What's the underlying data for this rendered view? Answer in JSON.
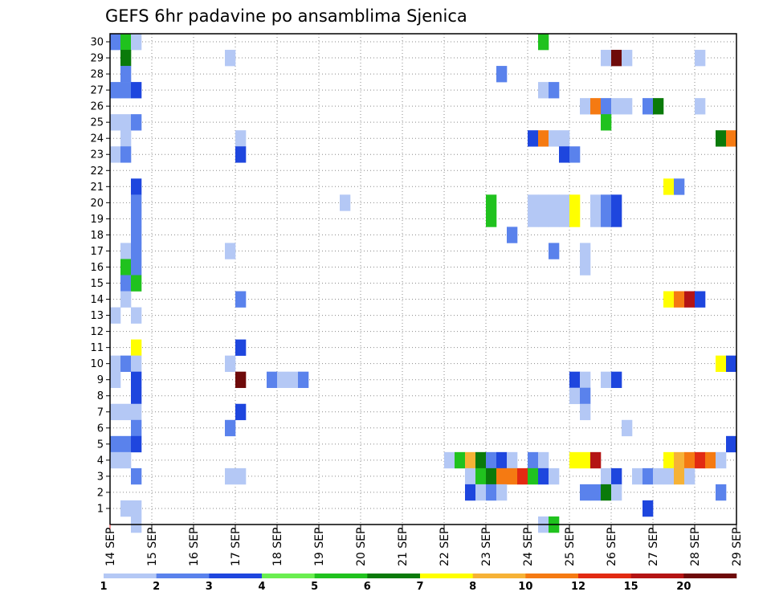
{
  "chart_data": {
    "type": "heatmap",
    "title": "GEFS 6hr padavine po ansamblima Sjenica",
    "xlabel": "",
    "ylabel": "",
    "x_ticks": [
      "14 SEP",
      "15 SEP",
      "16 SEP",
      "17 SEP",
      "18 SEP",
      "19 SEP",
      "20 SEP",
      "21 SEP",
      "22 SEP",
      "23 SEP",
      "24 SEP",
      "25 SEP",
      "26 SEP",
      "27 SEP",
      "28 SEP",
      "29 SEP"
    ],
    "y_ticks": [
      "1",
      "2",
      "3",
      "4",
      "5",
      "6",
      "7",
      "8",
      "9",
      "10",
      "11",
      "12",
      "13",
      "14",
      "15",
      "16",
      "17",
      "18",
      "19",
      "20",
      "21",
      "22",
      "23",
      "24",
      "25",
      "26",
      "27",
      "28",
      "29",
      "30"
    ],
    "xlim": [
      0,
      60
    ],
    "ylim": [
      0,
      30
    ],
    "x_step": "6hr",
    "grid": true,
    "colorbar": {
      "labels": [
        "1",
        "2",
        "3",
        "4",
        "5",
        "6",
        "7",
        "8",
        "10",
        "12",
        "15",
        "20"
      ],
      "colors": [
        "#b4c8f5",
        "#5a82ec",
        "#1e46de",
        "#6aee50",
        "#20c21e",
        "#0a7a0a",
        "#ffff00",
        "#f6b236",
        "#f57a12",
        "#e22a12",
        "#b41414",
        "#6e0a0a"
      ]
    },
    "cells": [
      [
        1,
        30,
        2
      ],
      [
        2,
        30,
        5
      ],
      [
        3,
        30,
        1
      ],
      [
        42,
        30,
        5
      ],
      [
        2,
        29,
        6
      ],
      [
        12,
        29,
        1
      ],
      [
        48,
        29,
        1
      ],
      [
        49,
        29,
        12
      ],
      [
        50,
        29,
        1
      ],
      [
        57,
        29,
        1
      ],
      [
        2,
        28,
        2
      ],
      [
        38,
        28,
        2
      ],
      [
        1,
        27,
        2
      ],
      [
        2,
        27,
        2
      ],
      [
        3,
        27,
        3
      ],
      [
        42,
        27,
        1
      ],
      [
        43,
        27,
        2
      ],
      [
        46,
        26,
        1
      ],
      [
        47,
        26,
        9
      ],
      [
        48,
        26,
        2
      ],
      [
        49,
        26,
        1
      ],
      [
        50,
        26,
        1
      ],
      [
        52,
        26,
        2
      ],
      [
        53,
        26,
        6
      ],
      [
        57,
        26,
        1
      ],
      [
        1,
        25,
        1
      ],
      [
        2,
        25,
        1
      ],
      [
        3,
        25,
        2
      ],
      [
        48,
        25,
        5
      ],
      [
        2,
        24,
        1
      ],
      [
        13,
        24,
        1
      ],
      [
        41,
        24,
        3
      ],
      [
        42,
        24,
        9
      ],
      [
        43,
        24,
        1
      ],
      [
        44,
        24,
        1
      ],
      [
        59,
        24,
        6
      ],
      [
        60,
        24,
        9
      ],
      [
        1,
        23,
        1
      ],
      [
        2,
        23,
        2
      ],
      [
        13,
        23,
        3
      ],
      [
        44,
        23,
        3
      ],
      [
        45,
        23,
        2
      ],
      [
        3,
        21,
        3
      ],
      [
        54,
        21,
        7
      ],
      [
        55,
        21,
        2
      ],
      [
        3,
        20,
        2
      ],
      [
        23,
        20,
        1
      ],
      [
        37,
        20,
        5
      ],
      [
        41,
        20,
        1
      ],
      [
        42,
        20,
        1
      ],
      [
        43,
        20,
        1
      ],
      [
        44,
        20,
        1
      ],
      [
        45,
        20,
        7
      ],
      [
        47,
        20,
        1
      ],
      [
        48,
        20,
        2
      ],
      [
        49,
        20,
        3
      ],
      [
        3,
        19,
        2
      ],
      [
        37,
        19,
        5
      ],
      [
        41,
        19,
        1
      ],
      [
        42,
        19,
        1
      ],
      [
        43,
        19,
        1
      ],
      [
        44,
        19,
        1
      ],
      [
        45,
        19,
        7
      ],
      [
        47,
        19,
        1
      ],
      [
        48,
        19,
        2
      ],
      [
        49,
        19,
        3
      ],
      [
        3,
        18,
        2
      ],
      [
        39,
        18,
        2
      ],
      [
        2,
        17,
        1
      ],
      [
        3,
        17,
        2
      ],
      [
        12,
        17,
        1
      ],
      [
        43,
        17,
        2
      ],
      [
        46,
        17,
        1
      ],
      [
        2,
        16,
        5
      ],
      [
        3,
        16,
        2
      ],
      [
        46,
        16,
        1
      ],
      [
        2,
        15,
        2
      ],
      [
        3,
        15,
        5
      ],
      [
        2,
        14,
        1
      ],
      [
        13,
        14,
        2
      ],
      [
        54,
        14,
        7
      ],
      [
        55,
        14,
        9
      ],
      [
        56,
        14,
        11
      ],
      [
        57,
        14,
        3
      ],
      [
        1,
        13,
        1
      ],
      [
        3,
        13,
        1
      ],
      [
        13,
        11,
        3
      ],
      [
        3,
        11,
        7
      ],
      [
        1,
        10,
        1
      ],
      [
        2,
        10,
        2
      ],
      [
        3,
        10,
        1
      ],
      [
        12,
        10,
        1
      ],
      [
        59,
        10,
        7
      ],
      [
        60,
        10,
        3
      ],
      [
        1,
        9,
        1
      ],
      [
        3,
        9,
        3
      ],
      [
        13,
        9,
        12
      ],
      [
        16,
        9,
        2
      ],
      [
        17,
        9,
        1
      ],
      [
        18,
        9,
        1
      ],
      [
        19,
        9,
        2
      ],
      [
        45,
        9,
        3
      ],
      [
        46,
        9,
        1
      ],
      [
        48,
        9,
        1
      ],
      [
        49,
        9,
        3
      ],
      [
        3,
        8,
        3
      ],
      [
        45,
        8,
        1
      ],
      [
        46,
        8,
        2
      ],
      [
        1,
        7,
        1
      ],
      [
        2,
        7,
        1
      ],
      [
        3,
        7,
        1
      ],
      [
        13,
        7,
        3
      ],
      [
        46,
        7,
        1
      ],
      [
        3,
        6,
        2
      ],
      [
        12,
        6,
        2
      ],
      [
        50,
        6,
        1
      ],
      [
        1,
        5,
        2
      ],
      [
        2,
        5,
        2
      ],
      [
        3,
        5,
        3
      ],
      [
        60,
        5,
        3
      ],
      [
        1,
        4,
        1
      ],
      [
        2,
        4,
        1
      ],
      [
        33,
        4,
        1
      ],
      [
        34,
        4,
        5
      ],
      [
        35,
        4,
        8
      ],
      [
        36,
        4,
        6
      ],
      [
        37,
        4,
        2
      ],
      [
        38,
        4,
        3
      ],
      [
        39,
        4,
        1
      ],
      [
        41,
        4,
        2
      ],
      [
        42,
        4,
        1
      ],
      [
        45,
        4,
        7
      ],
      [
        46,
        4,
        7
      ],
      [
        47,
        4,
        11
      ],
      [
        54,
        4,
        7
      ],
      [
        55,
        4,
        8
      ],
      [
        56,
        4,
        9
      ],
      [
        57,
        4,
        10
      ],
      [
        58,
        4,
        9
      ],
      [
        59,
        4,
        1
      ],
      [
        3,
        3,
        2
      ],
      [
        12,
        3,
        1
      ],
      [
        13,
        3,
        1
      ],
      [
        35,
        3,
        1
      ],
      [
        36,
        3,
        5
      ],
      [
        37,
        3,
        6
      ],
      [
        38,
        3,
        9
      ],
      [
        39,
        3,
        9
      ],
      [
        40,
        3,
        10
      ],
      [
        41,
        3,
        5
      ],
      [
        42,
        3,
        3
      ],
      [
        43,
        3,
        1
      ],
      [
        48,
        3,
        1
      ],
      [
        49,
        3,
        3
      ],
      [
        51,
        3,
        1
      ],
      [
        52,
        3,
        2
      ],
      [
        53,
        3,
        1
      ],
      [
        54,
        3,
        1
      ],
      [
        55,
        3,
        8
      ],
      [
        56,
        3,
        1
      ],
      [
        35,
        2,
        3
      ],
      [
        36,
        2,
        1
      ],
      [
        37,
        2,
        2
      ],
      [
        38,
        2,
        1
      ],
      [
        46,
        2,
        2
      ],
      [
        47,
        2,
        2
      ],
      [
        48,
        2,
        6
      ],
      [
        49,
        2,
        1
      ],
      [
        59,
        2,
        2
      ],
      [
        2,
        1,
        1
      ],
      [
        3,
        1,
        1
      ],
      [
        52,
        1,
        3
      ],
      [
        3,
        0,
        1
      ],
      [
        42,
        0,
        1
      ],
      [
        43,
        0,
        5
      ]
    ]
  }
}
